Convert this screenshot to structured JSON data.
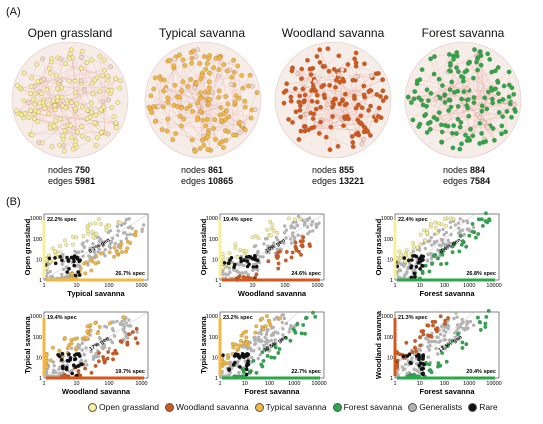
{
  "panel_a": {
    "label": "(A)",
    "networks": [
      {
        "title": "Open grassland",
        "nodes_label": "nodes",
        "nodes": "750",
        "edges_label": "edges",
        "edges": "5981",
        "color": "#f7ef9a",
        "edge_color": "#e99a8f"
      },
      {
        "title": "Typical savanna",
        "nodes_label": "nodes",
        "nodes": "861",
        "edges_label": "edges",
        "edges": "10865",
        "color": "#f2b844",
        "edge_color": "#e99a8f"
      },
      {
        "title": "Woodland savanna",
        "nodes_label": "nodes",
        "nodes": "855",
        "edges_label": "edges",
        "edges": "13221",
        "color": "#d4581a",
        "edge_color": "#e99a8f"
      },
      {
        "title": "Forest savanna",
        "nodes_label": "nodes",
        "nodes": "884",
        "edges_label": "edges",
        "edges": "7584",
        "color": "#2aa84a",
        "edge_color": "#e99a8f"
      }
    ]
  },
  "panel_b": {
    "label": "(B)"
  },
  "chart_data": [
    {
      "type": "scatter",
      "xlabel": "Typical savanna",
      "ylabel": "Open grassland",
      "x_ticks": [
        "1",
        "10",
        "100",
        "1000"
      ],
      "y_ticks": [
        "1",
        "10",
        "100",
        "1000"
      ],
      "spec_y": "22.2% spec",
      "spec_x": "26.7% spec",
      "gen": "8.7% gen",
      "y_color": "#f7ef9a",
      "x_color": "#f2b844"
    },
    {
      "type": "scatter",
      "xlabel": "Woodland savanna",
      "ylabel": "Open grassland",
      "x_ticks": [
        "1",
        "10",
        "100",
        "1000"
      ],
      "y_ticks": [
        "1",
        "10",
        "100",
        "1000"
      ],
      "spec_y": "19.4% spec",
      "spec_x": "24.6% spec",
      "gen": "10% gen",
      "y_color": "#f7ef9a",
      "x_color": "#d4581a"
    },
    {
      "type": "scatter",
      "xlabel": "Forest savanna",
      "ylabel": "Open grassland",
      "x_ticks": [
        "1",
        "10",
        "100",
        "1000",
        "10000"
      ],
      "y_ticks": [
        "1",
        "10",
        "100",
        "1000"
      ],
      "spec_y": "22.4% spec",
      "spec_x": "26.8% spec",
      "gen": "8.4% gen",
      "y_color": "#f7ef9a",
      "x_color": "#2aa84a"
    },
    {
      "type": "scatter",
      "xlabel": "Woodland savanna",
      "ylabel": "Typical savanna",
      "x_ticks": [
        "1",
        "10",
        "100",
        "1000"
      ],
      "y_ticks": [
        "1",
        "10",
        "100",
        "1000"
      ],
      "spec_y": "19.4% spec",
      "spec_x": "19.7% spec",
      "gen": "17% gen",
      "y_color": "#f2b844",
      "x_color": "#d4581a"
    },
    {
      "type": "scatter",
      "xlabel": "Forest savanna",
      "ylabel": "Typical savanna",
      "x_ticks": [
        "1",
        "10",
        "100",
        "1000",
        "10000"
      ],
      "y_ticks": [
        "1",
        "10",
        "100",
        "1000"
      ],
      "spec_y": "23.2% spec",
      "spec_x": "22.7% spec",
      "gen": "10.5% gen",
      "y_color": "#f2b844",
      "x_color": "#2aa84a"
    },
    {
      "type": "scatter",
      "xlabel": "Forest savanna",
      "ylabel": "Woodland savanna",
      "x_ticks": [
        "1",
        "10",
        "100",
        "1000",
        "10000"
      ],
      "y_ticks": [
        "1",
        "10",
        "100",
        "1000"
      ],
      "spec_y": "21.3% spec",
      "spec_x": "20.4% spec",
      "gen": "13.5% gen",
      "y_color": "#d4581a",
      "x_color": "#2aa84a"
    }
  ],
  "legend": [
    {
      "label": "Open grassland",
      "color": "#f7ef9a"
    },
    {
      "label": "Woodland savanna",
      "color": "#d4581a"
    },
    {
      "label": "Typical savanna",
      "color": "#f2b844"
    },
    {
      "label": "Forest savanna",
      "color": "#2aa84a"
    },
    {
      "label": "Generalists",
      "color": "#b3b3b3"
    },
    {
      "label": "Rare",
      "color": "#111111"
    }
  ]
}
